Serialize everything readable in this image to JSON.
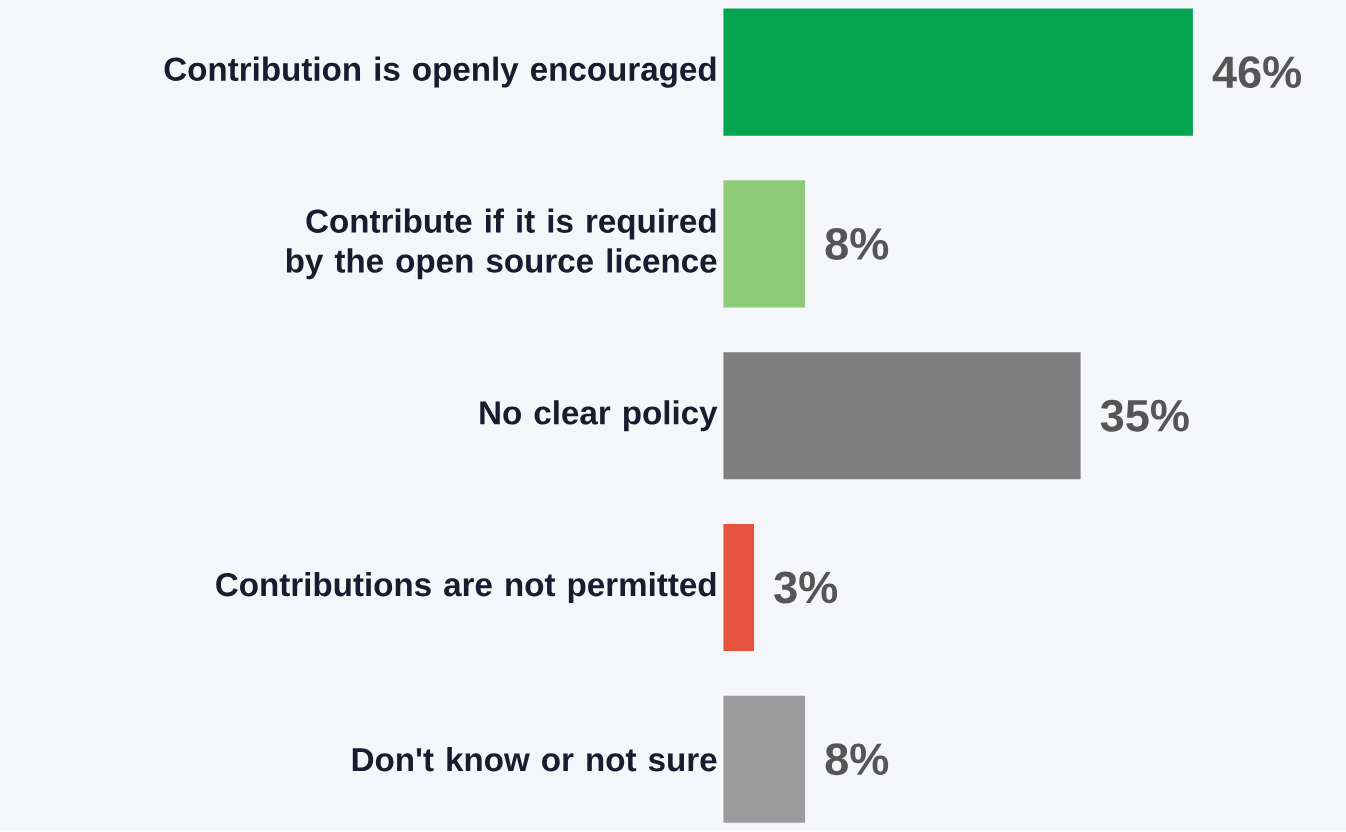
{
  "chart_data": {
    "type": "bar",
    "orientation": "horizontal",
    "categories": [
      "Contribution is openly encouraged",
      "Contribute if it is required by the open source licence",
      "No clear policy",
      "Contributions are not permitted",
      "Don't know or not sure"
    ],
    "values": [
      46,
      8,
      35,
      3,
      8
    ],
    "colors": [
      "#04a550",
      "#8fca78",
      "#7f7f7f",
      "#e5533f",
      "#9b9b9b"
    ],
    "value_labels": [
      "46%",
      "8%",
      "35%",
      "3%",
      "8%"
    ]
  }
}
